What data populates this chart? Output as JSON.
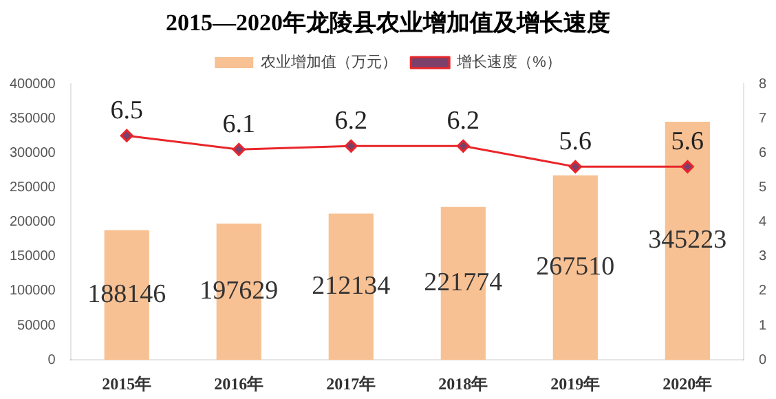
{
  "chart_data": {
    "type": "bar",
    "title": "2015—2020年龙陵县农业增加值及增长速度",
    "categories": [
      "2015年",
      "2016年",
      "2017年",
      "2018年",
      "2019年",
      "2020年"
    ],
    "series": [
      {
        "name": "农业增加值（万元）",
        "color": "#f8c194",
        "values": [
          188146,
          197629,
          212134,
          221774,
          267510,
          345223
        ]
      },
      {
        "name": "增长速度（%）",
        "type": "line",
        "axis": "y2",
        "color": "#e8262a",
        "marker": "diamond",
        "values": [
          6.5,
          6.1,
          6.2,
          6.2,
          5.6,
          5.6
        ]
      }
    ],
    "ylim": [
      0,
      400000
    ],
    "yticks": [
      0,
      50000,
      100000,
      150000,
      200000,
      250000,
      300000,
      350000,
      400000
    ],
    "y2lim": [
      0,
      8
    ],
    "y2ticks": [
      0,
      1,
      2,
      3,
      4,
      5,
      6,
      7,
      8
    ],
    "data_labels": true,
    "legend": "top",
    "grid": false
  }
}
